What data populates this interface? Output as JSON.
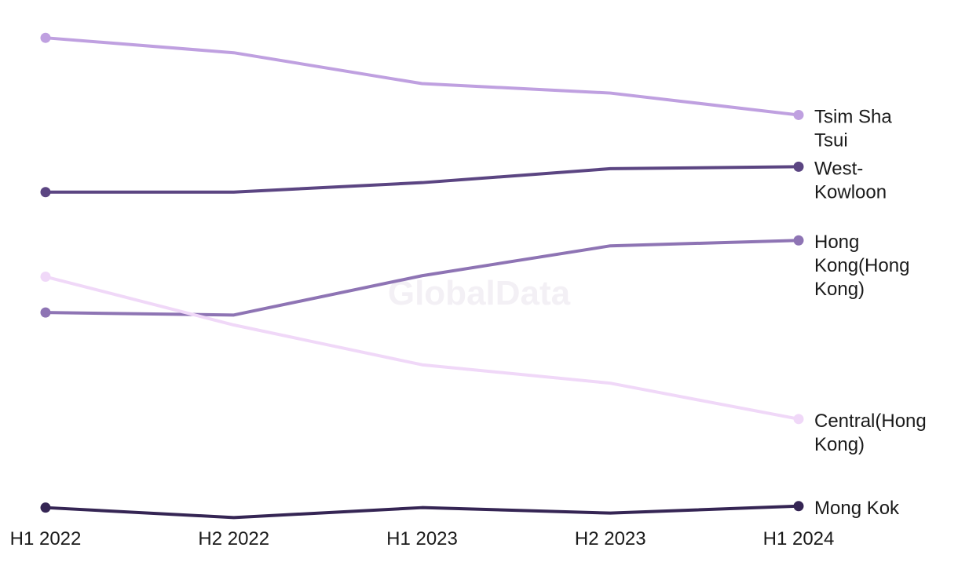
{
  "watermark": "GlobalData",
  "chart_data": {
    "type": "line",
    "title": "",
    "xlabel": "",
    "ylabel": "",
    "categories": [
      "H1 2022",
      "H2 2022",
      "H1 2023",
      "H2 2023",
      "H1 2024"
    ],
    "ylim": [
      0,
      100
    ],
    "grid": false,
    "legend": "inline-right",
    "series": [
      {
        "name": "Tsim Sha Tsui",
        "label_lines": [
          "Tsim Sha",
          "Tsui"
        ],
        "color": "#bfa0e0",
        "values": [
          96.5,
          93.5,
          87.3,
          85.4,
          81.0
        ]
      },
      {
        "name": "West-Kowloon",
        "label_lines": [
          "West-",
          "Kowloon"
        ],
        "color": "#5b4582",
        "values": [
          65.5,
          65.5,
          67.4,
          70.2,
          70.6
        ]
      },
      {
        "name": "Hong Kong(Hong Kong)",
        "label_lines": [
          "Hong",
          "Kong(Hong",
          "Kong)"
        ],
        "color": "#8e74b4",
        "values": [
          41.3,
          40.8,
          48.7,
          54.7,
          55.8
        ]
      },
      {
        "name": "Central(Hong Kong)",
        "label_lines": [
          "Central(Hong",
          "Kong)"
        ],
        "color": "#f0d8f8",
        "values": [
          48.5,
          38.8,
          30.8,
          27.1,
          19.9
        ]
      },
      {
        "name": "Mong Kok",
        "label_lines": [
          "Mong Kok"
        ],
        "color": "#352554",
        "values": [
          2.1,
          0.1,
          2.1,
          1.0,
          2.4
        ]
      }
    ]
  }
}
